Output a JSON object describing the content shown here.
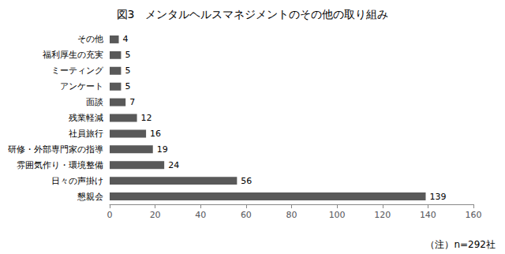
{
  "chart_data": {
    "type": "bar",
    "orientation": "horizontal",
    "title": "図3　メンタルヘルスマネジメントのその他の取り組み",
    "categories": [
      "懇親会",
      "日々の声掛け",
      "雰囲気作り・環境整備",
      "研修・外部専門家の指導",
      "社員旅行",
      "残業軽減",
      "面談",
      "アンケート",
      "ミーティング",
      "福利厚生の充実",
      "その他"
    ],
    "values": [
      139,
      56,
      24,
      19,
      16,
      12,
      7,
      5,
      5,
      5,
      4
    ],
    "color": "#595959",
    "xlim": [
      0,
      160
    ],
    "xticks": [
      0,
      20,
      40,
      60,
      80,
      100,
      120,
      140,
      160
    ],
    "data_labels": true,
    "grid": false,
    "annotations": [
      "（注）n=292社"
    ]
  }
}
